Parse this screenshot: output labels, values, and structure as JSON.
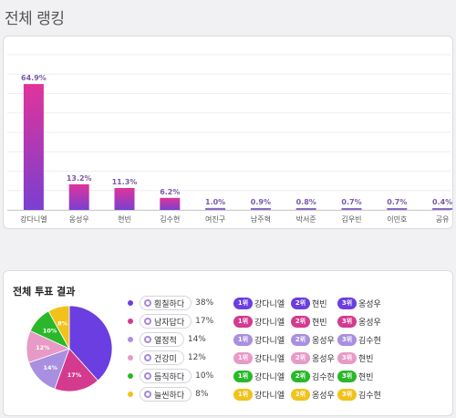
{
  "page_title": "전체 랭킹",
  "vote_title": "전체 투표 결과",
  "chart_data": [
    {
      "type": "bar",
      "categories": [
        "강다니엘",
        "옹성우",
        "현빈",
        "김수현",
        "여진구",
        "남주혁",
        "박서준",
        "김우빈",
        "이민호",
        "공유"
      ],
      "values": [
        64.9,
        13.2,
        11.3,
        6.2,
        1.0,
        0.9,
        0.8,
        0.7,
        0.7,
        0.4
      ],
      "data_labels": [
        "64.9%",
        "13.2%",
        "11.3%",
        "6.2%",
        "1.0%",
        "0.9%",
        "0.8%",
        "0.7%",
        "0.7%",
        "0.4%"
      ],
      "ylim": [
        0,
        80
      ],
      "grid": true,
      "colors": {
        "top": "#e0349a",
        "bottom": "#7a3fd0",
        "small": "#8a6bbf"
      }
    },
    {
      "type": "pie",
      "labels": [
        "훤칠하다",
        "남자답다",
        "열정적",
        "건강미",
        "듬직하다",
        "늘씬하다"
      ],
      "values": [
        38,
        17,
        14,
        12,
        10,
        8
      ],
      "value_labels": [
        "38%",
        "17%",
        "14%",
        "12%",
        "10%",
        "8%"
      ],
      "slice_labels": [
        "",
        "17%",
        "14%",
        "12%",
        "10%",
        "8%"
      ],
      "colors": [
        "#6a3ee0",
        "#d43a8e",
        "#a88fe0",
        "#e89ac6",
        "#2ab82a",
        "#f2c21a"
      ]
    }
  ],
  "legend": [
    {
      "label": "훤칠하다",
      "pct": "38%",
      "color": "#6a3ee0"
    },
    {
      "label": "남자답다",
      "pct": "17%",
      "color": "#d43a8e"
    },
    {
      "label": "열정적",
      "pct": "14%",
      "color": "#a88fe0"
    },
    {
      "label": "건강미",
      "pct": "12%",
      "color": "#e89ac6"
    },
    {
      "label": "듬직하다",
      "pct": "10%",
      "color": "#2ab82a"
    },
    {
      "label": "늘씬하다",
      "pct": "8%",
      "color": "#f2c21a"
    }
  ],
  "rankings": [
    {
      "color": "#6a3ee0",
      "ranks": [
        {
          "badge": "1위",
          "name": "강다니엘"
        },
        {
          "badge": "2위",
          "name": "현빈"
        },
        {
          "badge": "3위",
          "name": "옹성우"
        }
      ]
    },
    {
      "color": "#d43a8e",
      "ranks": [
        {
          "badge": "1위",
          "name": "강다니엘"
        },
        {
          "badge": "2위",
          "name": "현빈"
        },
        {
          "badge": "3위",
          "name": "옹성우"
        }
      ]
    },
    {
      "color": "#a88fe0",
      "ranks": [
        {
          "badge": "1위",
          "name": "강다니엘"
        },
        {
          "badge": "2위",
          "name": "옹성우"
        },
        {
          "badge": "3위",
          "name": "김수현"
        }
      ]
    },
    {
      "color": "#e89ac6",
      "ranks": [
        {
          "badge": "1위",
          "name": "강다니엘"
        },
        {
          "badge": "2위",
          "name": "옹성우"
        },
        {
          "badge": "3위",
          "name": "현빈"
        }
      ]
    },
    {
      "color": "#2ab82a",
      "ranks": [
        {
          "badge": "1위",
          "name": "강다니엘"
        },
        {
          "badge": "2위",
          "name": "김수현"
        },
        {
          "badge": "3위",
          "name": "현빈"
        }
      ]
    },
    {
      "color": "#f2c21a",
      "ranks": [
        {
          "badge": "1위",
          "name": "강다니엘"
        },
        {
          "badge": "2위",
          "name": "옹성우"
        },
        {
          "badge": "3위",
          "name": "김수현"
        }
      ]
    }
  ]
}
